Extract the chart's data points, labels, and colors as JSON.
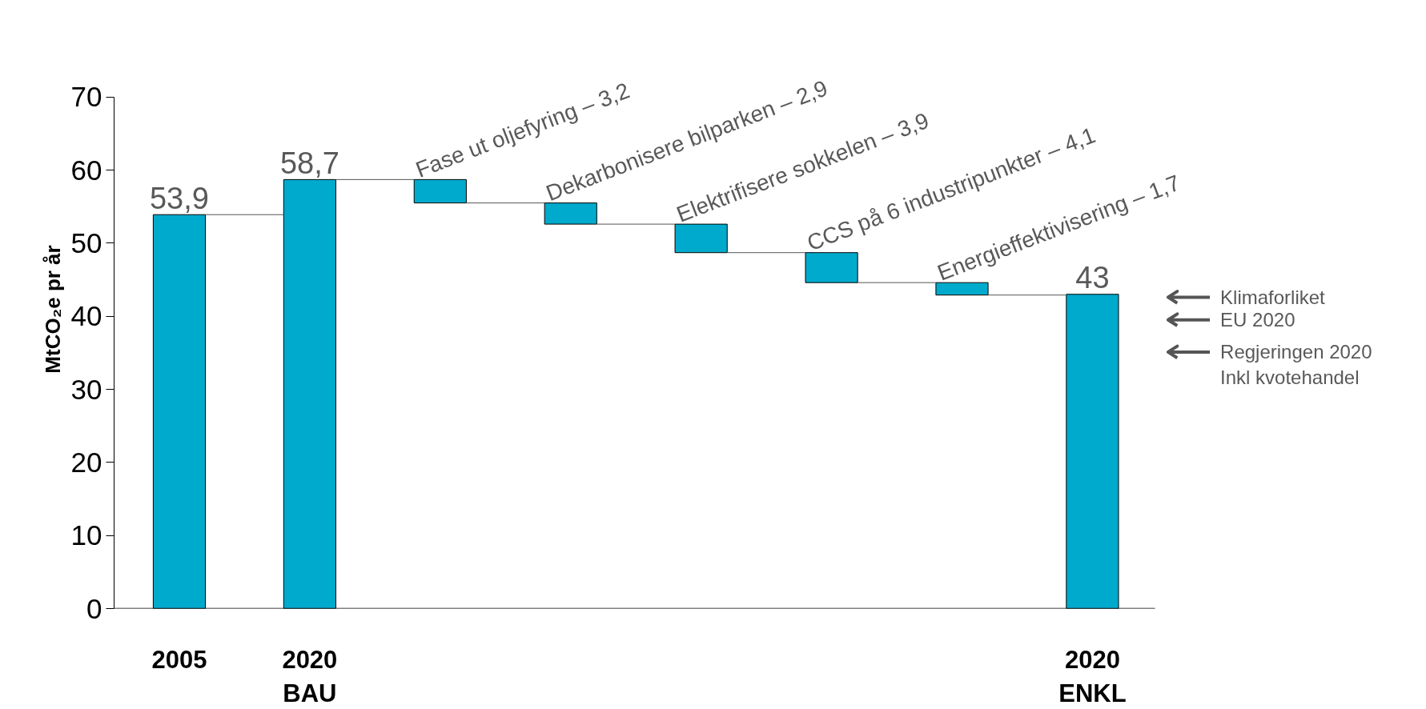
{
  "chart_data": {
    "type": "bar",
    "ylabel": "MtCO₂e pr år",
    "categories": [
      "2005",
      "2020\nBAU",
      null,
      null,
      null,
      null,
      null,
      "2020\nENKL"
    ],
    "values": [
      53.9,
      58.7,
      -3.2,
      -2.9,
      -3.9,
      -4.1,
      -1.7,
      43
    ],
    "base": [
      0,
      0,
      58.7,
      55.5,
      52.6,
      48.7,
      44.6,
      0
    ],
    "value_labels": [
      "53,9",
      "58,7",
      "Fase ut oljefyring – 3,2",
      "Dekarbonisere bilparken – 2,9",
      "Elektrifisere sokkelen – 3,9",
      "CCS på 6 industripunkter – 4,1",
      "Energieffektivisering – 1,7",
      "43"
    ],
    "color": "#00aacc",
    "ylim": [
      0,
      70
    ],
    "yticks": [
      0,
      10,
      20,
      30,
      40,
      50,
      60,
      70
    ],
    "grid": false,
    "legend": false,
    "ref_lines": [
      {
        "axis": "y",
        "value": 42.6,
        "label": "Klimaforliket",
        "color": "#555555"
      },
      {
        "axis": "y",
        "value": 39.5,
        "label": "EU 2020",
        "color": "#555555"
      },
      {
        "axis": "y",
        "value": 35.1,
        "label": "Regjeringen 2020\nInkl kvotehandel",
        "color": "#555555"
      }
    ]
  }
}
